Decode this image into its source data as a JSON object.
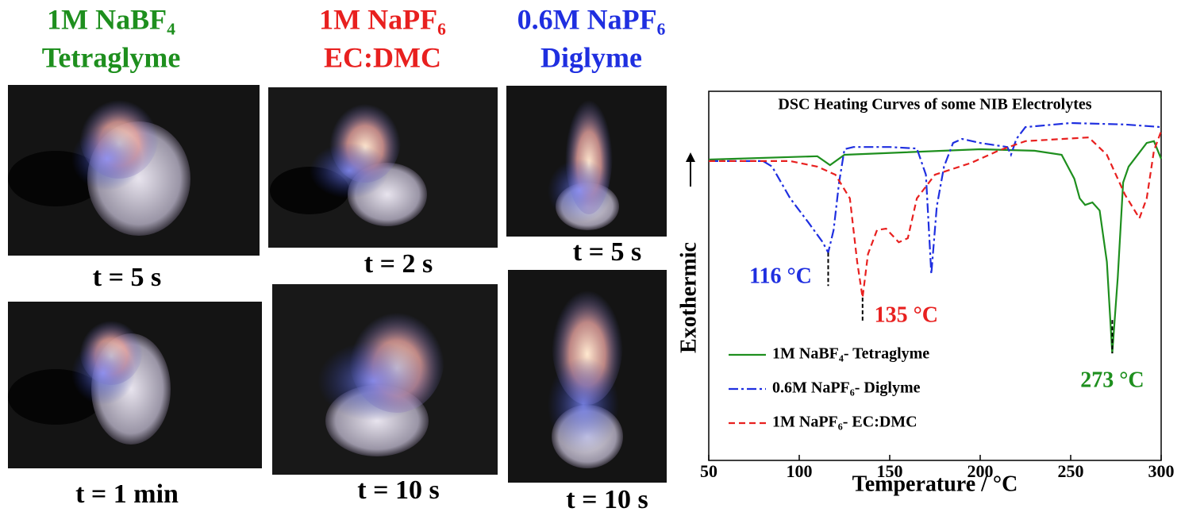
{
  "panels": [
    {
      "title": [
        "1M NaBF₄",
        "Tetraglyme"
      ],
      "color": "#1e8f1e",
      "captions": [
        "t = 5 s",
        "t = 1 min"
      ]
    },
    {
      "title": [
        "1M NaPF₆",
        "EC:DMC"
      ],
      "color": "#e8201f",
      "captions": [
        "t = 2 s",
        "t = 10 s"
      ]
    },
    {
      "title": [
        "0.6M NaPF₆",
        "Diglyme"
      ],
      "color": "#1f2fe0",
      "captions": [
        "t = 5 s",
        "t = 10 s"
      ]
    }
  ],
  "chart_data": {
    "type": "line",
    "title": "DSC Heating Curves of some NIB Electrolytes",
    "x_label": "Temperature / °C",
    "y_label": "Exothermic",
    "xlim": [
      50,
      300
    ],
    "xticks": [
      50,
      100,
      150,
      200,
      250,
      300
    ],
    "ylim": [
      0,
      100
    ],
    "legend": "lower-left",
    "series": [
      {
        "name": "1M NaBF₄- Tetraglyme",
        "color": "#1e8f1e",
        "dash": "solid",
        "x": [
          50,
          110,
          117,
          125,
          200,
          230,
          245,
          252,
          255,
          258,
          262,
          266,
          270,
          273,
          276,
          279,
          282,
          292,
          296,
          300
        ],
        "values": [
          81.5,
          82.4,
          80.0,
          82.8,
          84.3,
          83.9,
          82.8,
          76.3,
          71.0,
          69.2,
          69.9,
          67.7,
          53.8,
          29.0,
          49.5,
          75.3,
          79.6,
          86.0,
          86.5,
          81.7
        ]
      },
      {
        "name": "0.6M NaPF₆- Diglyme",
        "color": "#1f2fe0",
        "dash": "dashdot",
        "x": [
          50,
          80,
          85,
          95,
          105,
          113,
          116,
          119,
          122,
          125,
          130,
          150,
          165,
          170,
          173,
          176,
          180,
          185,
          190,
          200,
          215,
          217,
          220,
          225,
          250,
          280,
          300
        ],
        "values": [
          81.1,
          81.1,
          79.6,
          71.0,
          64.5,
          59.1,
          56.3,
          62.4,
          75.3,
          84.3,
          84.9,
          84.9,
          84.5,
          77.4,
          50.5,
          68.8,
          79.6,
          86.0,
          87.1,
          86.0,
          84.9,
          82.8,
          87.1,
          90.3,
          91.4,
          91.0,
          90.3
        ]
      },
      {
        "name": "1M NaPF₆- EC:DMC",
        "color": "#e8201f",
        "dash": "dashed",
        "x": [
          50,
          95,
          110,
          120,
          128,
          132,
          135,
          138,
          143,
          148,
          155,
          160,
          165,
          175,
          195,
          210,
          225,
          260,
          270,
          280,
          288,
          292,
          296,
          300
        ],
        "values": [
          81.1,
          81.1,
          79.6,
          77.4,
          71.0,
          53.8,
          44.1,
          55.9,
          62.4,
          62.8,
          59.1,
          60.2,
          71.0,
          77.4,
          80.6,
          83.9,
          86.5,
          87.5,
          82.8,
          72.0,
          65.6,
          71.0,
          83.9,
          89.2
        ]
      }
    ],
    "annotations": [
      {
        "text": "116 °C",
        "x": 116,
        "color": "#1f2fe0"
      },
      {
        "text": "135 °C",
        "x": 135,
        "color": "#e8201f"
      },
      {
        "text": "273 °C",
        "x": 273,
        "color": "#1e8f1e"
      }
    ]
  }
}
